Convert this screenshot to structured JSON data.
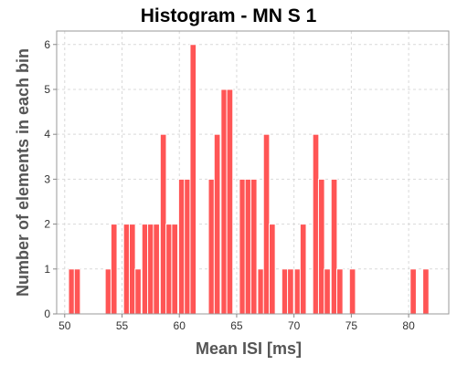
{
  "chart_data": {
    "type": "bar",
    "title": "Histogram - MN S 1",
    "xlabel": "Mean ISI [ms]",
    "ylabel": "Number of elements in each bin",
    "xlim": [
      49.3,
      83.5
    ],
    "ylim": [
      0,
      6.3
    ],
    "bin_width": 0.53,
    "x_ticks": [
      50,
      55,
      60,
      65,
      70,
      75,
      80
    ],
    "y_ticks": [
      0,
      1,
      2,
      3,
      4,
      5,
      6
    ],
    "grid": true,
    "legend": "none",
    "bar_color": "#ff5555",
    "bins": [
      {
        "x": 50.6,
        "y": 1
      },
      {
        "x": 51.1,
        "y": 1
      },
      {
        "x": 53.8,
        "y": 1
      },
      {
        "x": 54.3,
        "y": 2
      },
      {
        "x": 55.4,
        "y": 2
      },
      {
        "x": 55.9,
        "y": 2
      },
      {
        "x": 56.4,
        "y": 1
      },
      {
        "x": 57.0,
        "y": 2
      },
      {
        "x": 57.5,
        "y": 2
      },
      {
        "x": 58.0,
        "y": 2
      },
      {
        "x": 58.6,
        "y": 4
      },
      {
        "x": 59.1,
        "y": 2
      },
      {
        "x": 59.6,
        "y": 2
      },
      {
        "x": 60.2,
        "y": 3
      },
      {
        "x": 60.7,
        "y": 3
      },
      {
        "x": 61.2,
        "y": 6
      },
      {
        "x": 62.8,
        "y": 3
      },
      {
        "x": 63.3,
        "y": 4
      },
      {
        "x": 63.9,
        "y": 5
      },
      {
        "x": 64.4,
        "y": 5
      },
      {
        "x": 65.5,
        "y": 3
      },
      {
        "x": 66.0,
        "y": 3
      },
      {
        "x": 66.5,
        "y": 3
      },
      {
        "x": 67.1,
        "y": 1
      },
      {
        "x": 67.6,
        "y": 4
      },
      {
        "x": 68.1,
        "y": 2
      },
      {
        "x": 69.2,
        "y": 1
      },
      {
        "x": 69.7,
        "y": 1
      },
      {
        "x": 70.3,
        "y": 1
      },
      {
        "x": 70.8,
        "y": 2
      },
      {
        "x": 71.9,
        "y": 4
      },
      {
        "x": 72.4,
        "y": 3
      },
      {
        "x": 72.9,
        "y": 1
      },
      {
        "x": 73.5,
        "y": 3
      },
      {
        "x": 74.0,
        "y": 1
      },
      {
        "x": 75.1,
        "y": 1
      },
      {
        "x": 80.4,
        "y": 1
      },
      {
        "x": 81.5,
        "y": 1
      }
    ]
  }
}
